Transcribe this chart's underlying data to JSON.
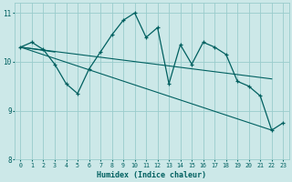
{
  "xlabel": "Humidex (Indice chaleur)",
  "ylabel": "",
  "bg_color": "#cce8e8",
  "line_color": "#006060",
  "grid_color": "#99cccc",
  "xlim": [
    -0.5,
    23.5
  ],
  "ylim": [
    8.0,
    11.2
  ],
  "yticks": [
    8,
    9,
    10,
    11
  ],
  "xticks": [
    0,
    1,
    2,
    3,
    4,
    5,
    6,
    7,
    8,
    9,
    10,
    11,
    12,
    13,
    14,
    15,
    16,
    17,
    18,
    19,
    20,
    21,
    22,
    23
  ],
  "main_series_x": [
    0,
    1,
    2,
    3,
    4,
    5,
    6,
    7,
    8,
    9,
    10,
    11,
    12,
    13,
    14,
    15,
    16,
    17,
    18,
    19,
    20,
    21,
    22,
    23
  ],
  "main_series_y": [
    10.3,
    10.4,
    10.25,
    9.95,
    9.55,
    9.35,
    9.85,
    10.2,
    10.55,
    10.85,
    11.0,
    10.5,
    10.7,
    9.55,
    10.35,
    9.95,
    10.4,
    10.3,
    10.15,
    9.6,
    9.5,
    9.3,
    8.6,
    8.75
  ],
  "trend_line1_x": [
    0,
    22
  ],
  "trend_line1_y": [
    10.3,
    8.6
  ],
  "trend_line2_x": [
    0,
    22
  ],
  "trend_line2_y": [
    10.3,
    9.65
  ],
  "trend_line3_x": [
    0,
    3
  ],
  "trend_line3_y": [
    10.3,
    10.2
  ]
}
